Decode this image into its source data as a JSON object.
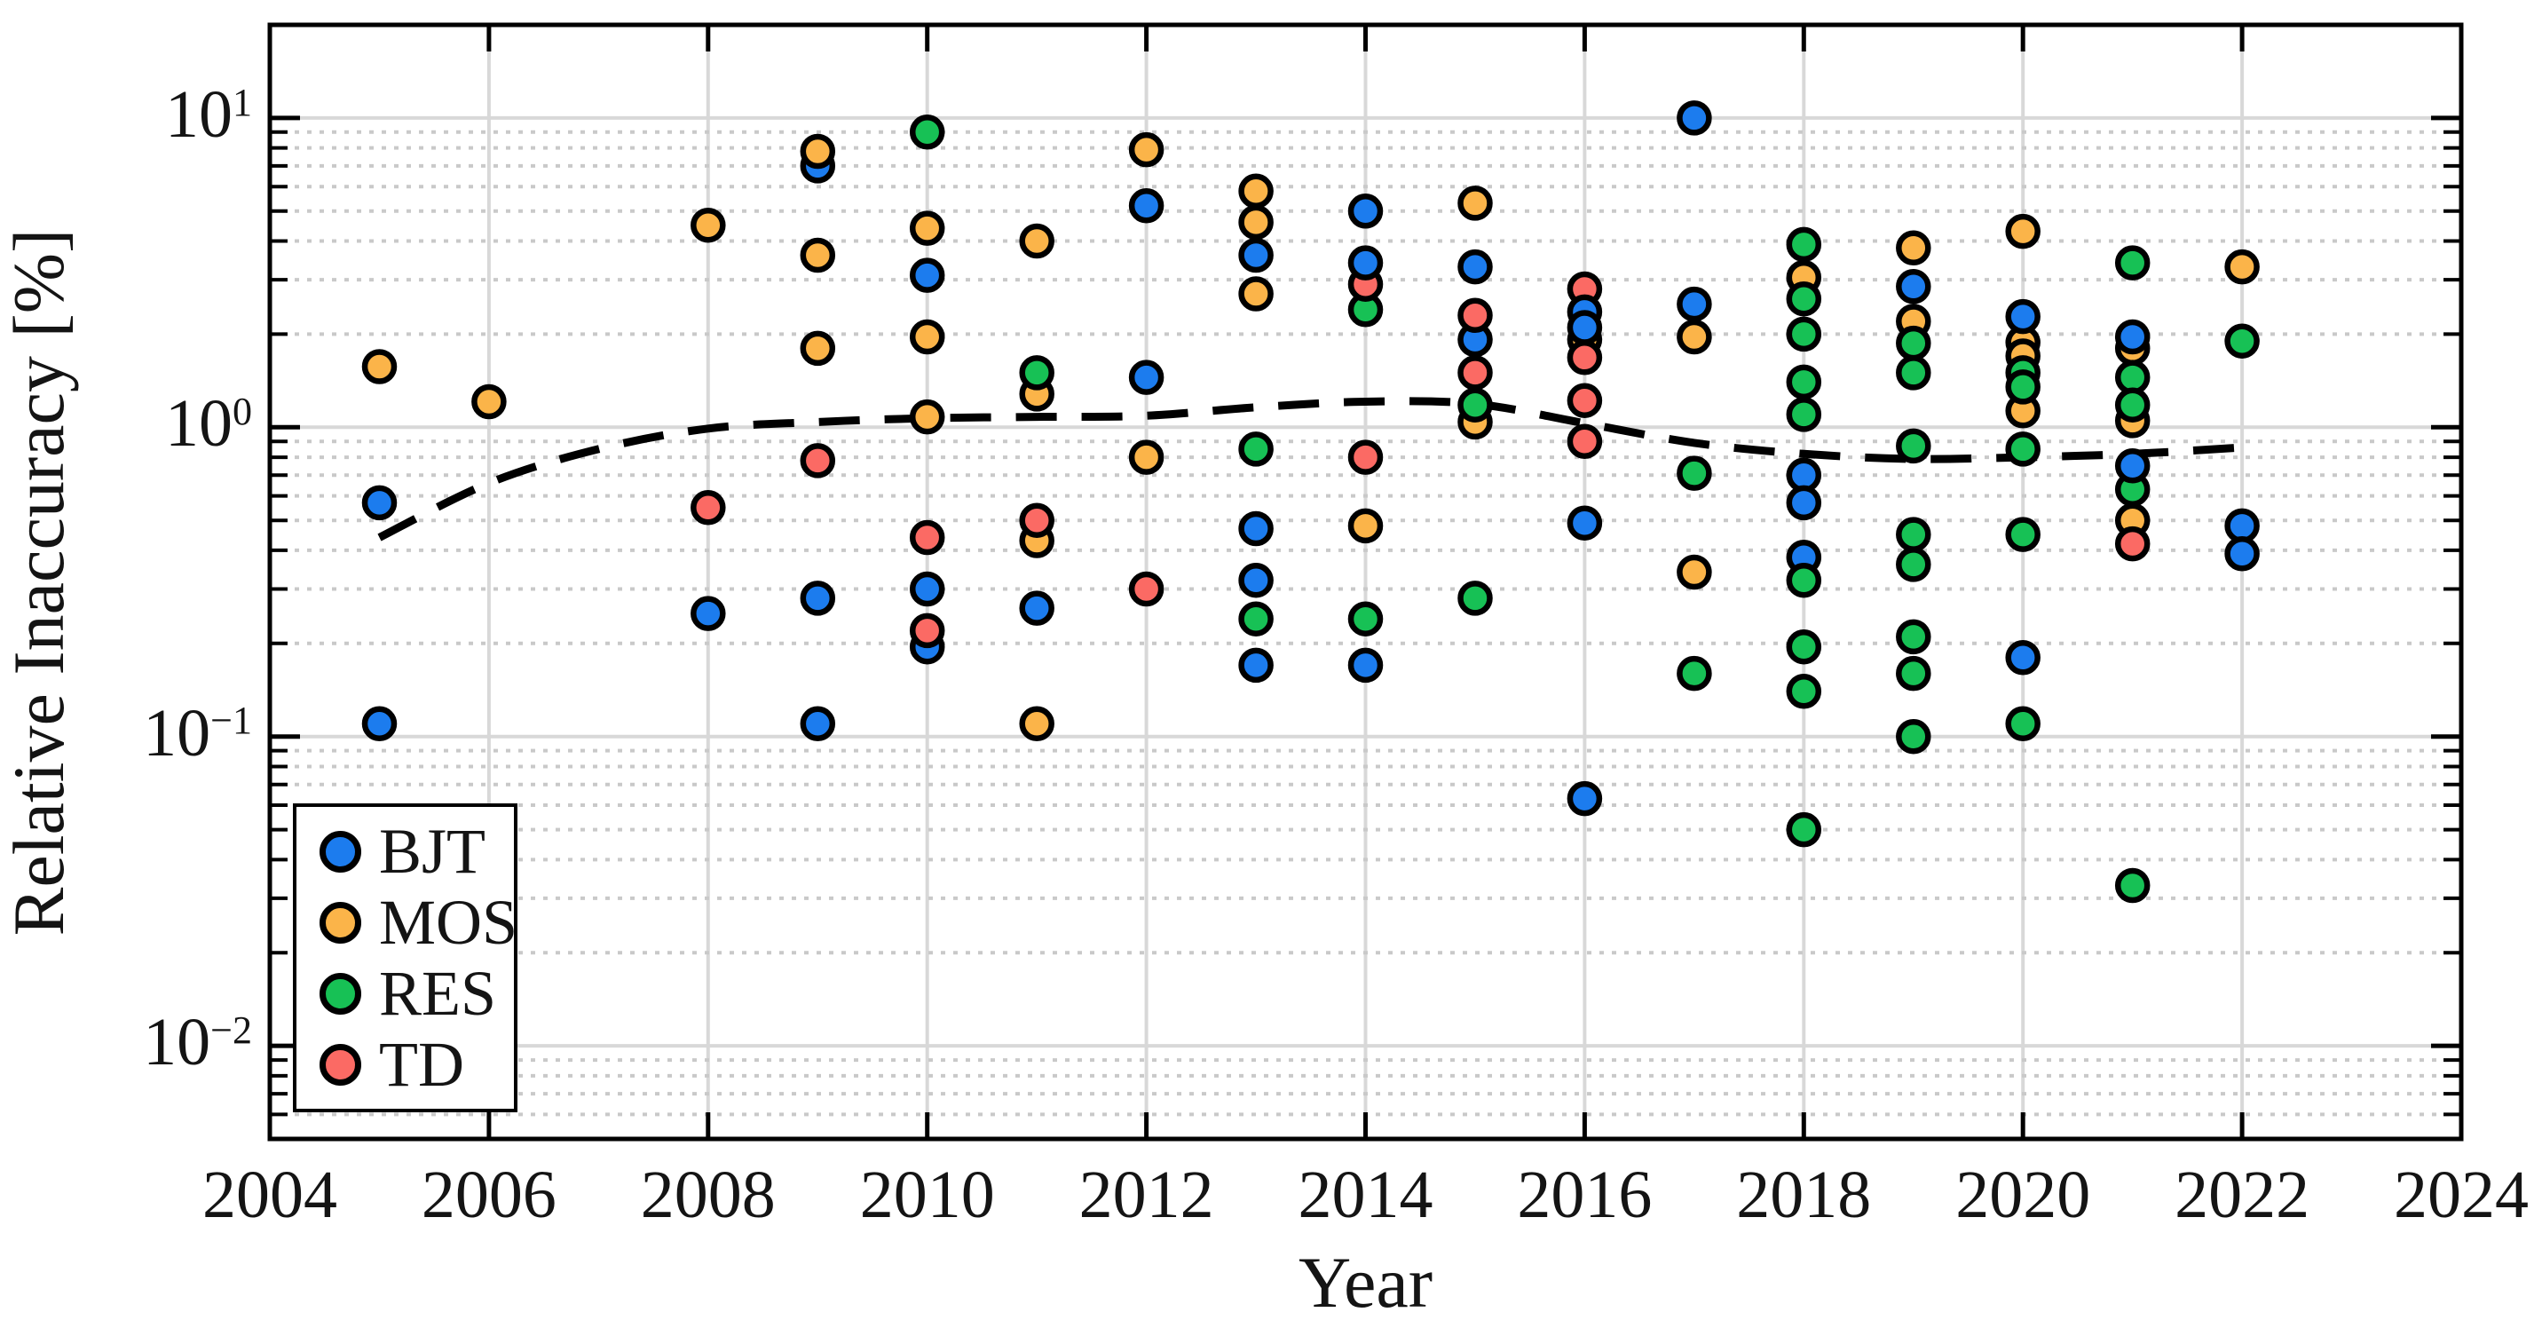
{
  "chart_data": {
    "type": "scatter",
    "title": "",
    "xlabel": "Year",
    "ylabel": "Relative Inaccuracy [%]",
    "xlim": [
      2004,
      2024
    ],
    "ylim": [
      0.005,
      20
    ],
    "y_scale": "log10",
    "grid": "major solid gray at decades and even years; minor dotted at 2-9 mantissas",
    "x_tick_labels": [
      "2004",
      "2006",
      "2008",
      "2010",
      "2012",
      "2014",
      "2016",
      "2018",
      "2020",
      "2022",
      "2024"
    ],
    "x_ticks": [
      2004,
      2006,
      2008,
      2010,
      2012,
      2014,
      2016,
      2018,
      2020,
      2022,
      2024
    ],
    "y_tick_exponents": [
      "1",
      "0",
      "−1",
      "−2"
    ],
    "y_tick_values": [
      10,
      1,
      0.1,
      0.01
    ],
    "legend_position": "bottom-left",
    "legend_order": [
      "BJT",
      "MOS",
      "RES",
      "TD"
    ],
    "series": [
      {
        "name": "MOS",
        "color": "#fbb449",
        "points": [
          [
            2005,
            1.57
          ],
          [
            2006,
            1.21
          ],
          [
            2008,
            4.5
          ],
          [
            2009,
            7.8
          ],
          [
            2009,
            3.6
          ],
          [
            2009,
            1.8
          ],
          [
            2010,
            4.4
          ],
          [
            2010,
            1.96
          ],
          [
            2010,
            1.08
          ],
          [
            2011,
            4.0
          ],
          [
            2011,
            1.28
          ],
          [
            2011,
            0.43
          ],
          [
            2011,
            0.11
          ],
          [
            2012,
            7.9
          ],
          [
            2012,
            0.8
          ],
          [
            2013,
            5.8
          ],
          [
            2013,
            4.6
          ],
          [
            2013,
            2.7
          ],
          [
            2014,
            0.48
          ],
          [
            2015,
            5.3
          ],
          [
            2015,
            1.04
          ],
          [
            2016,
            1.92
          ],
          [
            2017,
            1.96
          ],
          [
            2017,
            0.34
          ],
          [
            2018,
            3.05
          ],
          [
            2019,
            3.8
          ],
          [
            2019,
            2.2
          ],
          [
            2020,
            4.3
          ],
          [
            2020,
            1.88
          ],
          [
            2020,
            1.7
          ],
          [
            2020,
            1.13
          ],
          [
            2021,
            1.8
          ],
          [
            2021,
            1.05
          ],
          [
            2021,
            0.5
          ],
          [
            2022,
            3.3
          ]
        ]
      },
      {
        "name": "RES",
        "color": "#17c155",
        "points": [
          [
            2010,
            9.0
          ],
          [
            2011,
            1.5
          ],
          [
            2013,
            0.85
          ],
          [
            2013,
            0.24
          ],
          [
            2014,
            2.4
          ],
          [
            2014,
            0.24
          ],
          [
            2015,
            1.18
          ],
          [
            2015,
            0.28
          ],
          [
            2017,
            0.71
          ],
          [
            2017,
            0.16
          ],
          [
            2018,
            3.9
          ],
          [
            2018,
            2.6
          ],
          [
            2018,
            2.0
          ],
          [
            2018,
            1.4
          ],
          [
            2018,
            1.1
          ],
          [
            2018,
            0.32
          ],
          [
            2018,
            0.195
          ],
          [
            2018,
            0.14
          ],
          [
            2018,
            0.05
          ],
          [
            2019,
            1.87
          ],
          [
            2019,
            1.5
          ],
          [
            2019,
            0.87
          ],
          [
            2019,
            0.45
          ],
          [
            2019,
            0.36
          ],
          [
            2019,
            0.21
          ],
          [
            2019,
            0.16
          ],
          [
            2019,
            0.1
          ],
          [
            2020,
            1.5
          ],
          [
            2020,
            1.35
          ],
          [
            2020,
            0.85
          ],
          [
            2020,
            0.45
          ],
          [
            2020,
            0.11
          ],
          [
            2021,
            3.4
          ],
          [
            2021,
            1.45
          ],
          [
            2021,
            1.18
          ],
          [
            2021,
            0.63
          ],
          [
            2021,
            0.033
          ],
          [
            2022,
            1.9
          ]
        ]
      },
      {
        "name": "TD",
        "color": "#fb6a64",
        "points": [
          [
            2008,
            0.55
          ],
          [
            2009,
            0.78
          ],
          [
            2010,
            0.44
          ],
          [
            2010,
            0.22
          ],
          [
            2011,
            0.5
          ],
          [
            2012,
            0.3
          ],
          [
            2014,
            2.9
          ],
          [
            2014,
            0.8
          ],
          [
            2015,
            2.3
          ],
          [
            2015,
            1.5
          ],
          [
            2016,
            2.8
          ],
          [
            2016,
            1.68
          ],
          [
            2016,
            1.22
          ],
          [
            2016,
            0.9
          ],
          [
            2021,
            0.42
          ]
        ]
      },
      {
        "name": "BJT",
        "color": "#1c7cee",
        "points": [
          [
            2005,
            0.57
          ],
          [
            2005,
            0.11
          ],
          [
            2008,
            0.25
          ],
          [
            2009,
            7.0,
            0
          ],
          [
            2009,
            0.28
          ],
          [
            2009,
            0.11
          ],
          [
            2010,
            3.1
          ],
          [
            2010,
            0.3
          ],
          [
            2010,
            0.195,
            0
          ],
          [
            2011,
            0.26
          ],
          [
            2012,
            5.2
          ],
          [
            2012,
            1.45
          ],
          [
            2013,
            3.6
          ],
          [
            2013,
            0.47
          ],
          [
            2013,
            0.32
          ],
          [
            2013,
            0.17
          ],
          [
            2014,
            5.0
          ],
          [
            2014,
            3.4
          ],
          [
            2014,
            0.17
          ],
          [
            2015,
            3.3
          ],
          [
            2015,
            1.92,
            0
          ],
          [
            2016,
            2.36
          ],
          [
            2016,
            2.1
          ],
          [
            2016,
            0.49
          ],
          [
            2016,
            0.063
          ],
          [
            2017,
            10.0
          ],
          [
            2017,
            2.5
          ],
          [
            2018,
            0.7
          ],
          [
            2018,
            0.57
          ],
          [
            2018,
            0.38,
            0
          ],
          [
            2019,
            2.85
          ],
          [
            2020,
            2.28
          ],
          [
            2020,
            0.18
          ],
          [
            2021,
            1.96
          ],
          [
            2021,
            0.75
          ],
          [
            2022,
            0.48
          ],
          [
            2022,
            0.39
          ]
        ]
      }
    ],
    "trend": {
      "style": "dashed",
      "color": "#000000",
      "points": [
        [
          2005,
          0.44
        ],
        [
          2006,
          0.66
        ],
        [
          2007,
          0.85
        ],
        [
          2008,
          0.99
        ],
        [
          2009,
          1.04
        ],
        [
          2010,
          1.07
        ],
        [
          2011,
          1.08
        ],
        [
          2012,
          1.09
        ],
        [
          2013,
          1.16
        ],
        [
          2014,
          1.21
        ],
        [
          2015,
          1.19
        ],
        [
          2016,
          1.03
        ],
        [
          2017,
          0.89
        ],
        [
          2018,
          0.82
        ],
        [
          2019,
          0.79
        ],
        [
          2020,
          0.8
        ],
        [
          2021,
          0.82
        ],
        [
          2022,
          0.86
        ]
      ]
    }
  }
}
